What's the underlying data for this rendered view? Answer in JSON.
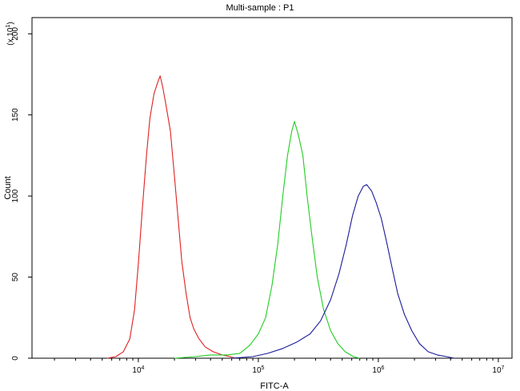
{
  "chart_data": {
    "type": "line",
    "title": "Multi-sample : P1",
    "xlabel": "FITC-A",
    "ylabel": "Count",
    "y_multiplier": "(x 10",
    "y_multiplier_exp": "1",
    "y_multiplier_close": ")",
    "x_scale": "log",
    "xlim": [
      1300,
      13000000
    ],
    "ylim": [
      0,
      210
    ],
    "x_ticks": [
      {
        "value": 10000,
        "base": "10",
        "exp": "4"
      },
      {
        "value": 100000,
        "base": "10",
        "exp": "5"
      },
      {
        "value": 1000000,
        "base": "10",
        "exp": "6"
      },
      {
        "value": 10000000,
        "base": "10",
        "exp": "7"
      }
    ],
    "y_ticks": [
      {
        "value": 0,
        "label": "0"
      },
      {
        "value": 50,
        "label": "50"
      },
      {
        "value": 100,
        "label": "100"
      },
      {
        "value": 150,
        "label": "150"
      },
      {
        "value": 200,
        "label": "200"
      }
    ],
    "grid": false,
    "legend": "none",
    "series": [
      {
        "color": "#e02020",
        "points": [
          [
            5500,
            0
          ],
          [
            6500,
            1
          ],
          [
            7500,
            4
          ],
          [
            8500,
            12
          ],
          [
            9300,
            30
          ],
          [
            10000,
            58
          ],
          [
            10800,
            92
          ],
          [
            11700,
            125
          ],
          [
            12500,
            148
          ],
          [
            13500,
            163
          ],
          [
            14500,
            170
          ],
          [
            15200,
            174
          ],
          [
            16000,
            167
          ],
          [
            17000,
            156
          ],
          [
            18500,
            140
          ],
          [
            20000,
            112
          ],
          [
            21500,
            85
          ],
          [
            23000,
            60
          ],
          [
            25000,
            40
          ],
          [
            27000,
            25
          ],
          [
            29000,
            18
          ],
          [
            32000,
            12
          ],
          [
            36000,
            7
          ],
          [
            42000,
            4
          ],
          [
            50000,
            2
          ],
          [
            58000,
            1
          ],
          [
            65000,
            0
          ]
        ]
      },
      {
        "color": "#22cc22",
        "points": [
          [
            20000,
            0
          ],
          [
            30000,
            1
          ],
          [
            40000,
            2
          ],
          [
            55000,
            2
          ],
          [
            70000,
            3
          ],
          [
            85000,
            8
          ],
          [
            100000,
            15
          ],
          [
            115000,
            25
          ],
          [
            130000,
            45
          ],
          [
            145000,
            70
          ],
          [
            160000,
            100
          ],
          [
            175000,
            125
          ],
          [
            190000,
            140
          ],
          [
            200000,
            146
          ],
          [
            215000,
            138
          ],
          [
            235000,
            125
          ],
          [
            255000,
            100
          ],
          [
            280000,
            75
          ],
          [
            310000,
            50
          ],
          [
            350000,
            30
          ],
          [
            400000,
            17
          ],
          [
            460000,
            9
          ],
          [
            530000,
            4
          ],
          [
            620000,
            1
          ],
          [
            700000,
            0
          ]
        ]
      },
      {
        "color": "#1a1a99",
        "points": [
          [
            60000,
            0
          ],
          [
            90000,
            1
          ],
          [
            120000,
            3
          ],
          [
            160000,
            6
          ],
          [
            210000,
            10
          ],
          [
            270000,
            15
          ],
          [
            330000,
            23
          ],
          [
            400000,
            36
          ],
          [
            470000,
            52
          ],
          [
            540000,
            70
          ],
          [
            610000,
            88
          ],
          [
            680000,
            100
          ],
          [
            750000,
            106
          ],
          [
            800000,
            107
          ],
          [
            880000,
            103
          ],
          [
            960000,
            96
          ],
          [
            1060000,
            86
          ],
          [
            1170000,
            72
          ],
          [
            1300000,
            56
          ],
          [
            1450000,
            40
          ],
          [
            1650000,
            27
          ],
          [
            1900000,
            17
          ],
          [
            2200000,
            9
          ],
          [
            2600000,
            4
          ],
          [
            3100000,
            2
          ],
          [
            3700000,
            1
          ],
          [
            4300000,
            0
          ]
        ]
      }
    ]
  }
}
